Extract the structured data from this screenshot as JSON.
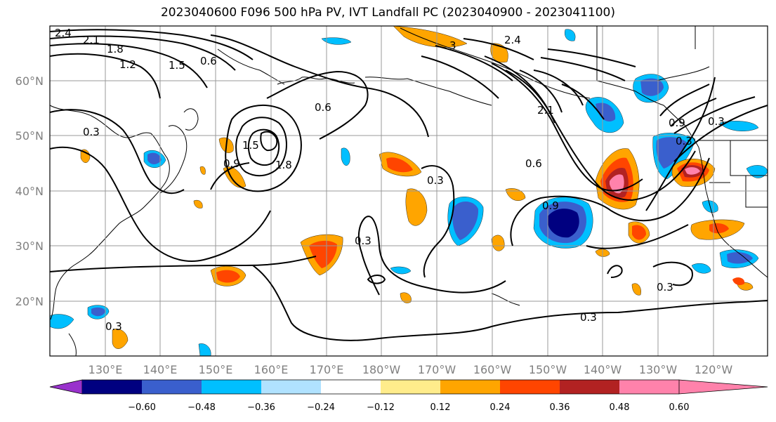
{
  "title": "2023040600 F096 500 hPa PV, IVT Landfall PC (2023040900 - 2023041100)",
  "lat_labels": [
    "60°N",
    "50°N",
    "40°N",
    "30°N",
    "20°N"
  ],
  "lon_labels": [
    "130°E",
    "140°E",
    "150°E",
    "160°E",
    "170°E",
    "180°W",
    "170°W",
    "160°W",
    "150°W",
    "140°W",
    "130°W",
    "120°W"
  ],
  "colorbar": {
    "ticks": [
      "−0.60",
      "−0.48",
      "−0.36",
      "−0.24",
      "−0.12",
      "0.12",
      "0.24",
      "0.36",
      "0.48",
      "0.60"
    ],
    "colors": [
      "#9932cc",
      "#000080",
      "#3a5fcd",
      "#00bfff",
      "#b0e2ff",
      "#ffffff",
      "#ffec8b",
      "#ffa500",
      "#ff4500",
      "#b22222",
      "#ff82ab"
    ]
  },
  "contour_labels": [
    "2.4",
    "2.1",
    "1.8",
    "1.2",
    "1.5",
    "0.6",
    "0.3",
    "0.9",
    "1.5",
    "1.8",
    "0.6",
    "3",
    "2.4",
    "2.1",
    "0.6",
    "0.3",
    "0.9",
    "0.3",
    "0.3",
    "0.3",
    "0.3",
    "0.3",
    "0.9",
    "0.3"
  ]
}
